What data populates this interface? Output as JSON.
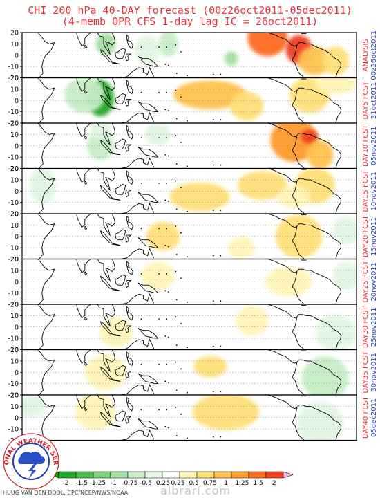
{
  "header": {
    "title_line1": "CHI 200 hPa 40-DAY forecast (00z26oct2011-05dec2011)",
    "title_line2": "(4-memb OPR CFS 1-day lag IC = 26oct2011)"
  },
  "credit": "HUUG VAN DEN DOOL, CPC/NCEP/NWS/NOAA",
  "watermark": "albrari.com",
  "logo_text": "NATIONAL WEATHER SERVICE",
  "colors": {
    "title": "#e8303a",
    "label_red": "#e8303a",
    "label_blue": "#2b3fc8",
    "coast": "#000000"
  },
  "chart_data": {
    "type": "heatmap",
    "yticks": [
      20,
      10,
      0,
      -10,
      -20
    ],
    "panels": [
      {
        "label1": "ANALYSIS",
        "label2": "00z26oct2011"
      },
      {
        "label1": "DAY5 FCST",
        "label2": "31oct2011"
      },
      {
        "label1": "DAY10 FCST",
        "label2": "05nov2011"
      },
      {
        "label1": "DAY15 FCST",
        "label2": "10nov2011"
      },
      {
        "label1": "DAY20 FCST",
        "label2": "15nov2011"
      },
      {
        "label1": "DAY25 FCST",
        "label2": "20nov2011"
      },
      {
        "label1": "DAY30 FCST",
        "label2": "25nov2011"
      },
      {
        "label1": "DAY35 FCST",
        "label2": "30nov2011"
      },
      {
        "label1": "DAY40 FCST",
        "label2": "05dec2011"
      }
    ],
    "colorbar": {
      "ticks": [
        "-2",
        "-1.5",
        "-1.25",
        "-1",
        "-0.75",
        "-0.5",
        "-0.25",
        "0.25",
        "0.5",
        "0.75",
        "1",
        "1.25",
        "1.5",
        "2"
      ],
      "colors": [
        "#22a828",
        "#4cbc4c",
        "#7ccf7c",
        "#a4dfa4",
        "#c6edc6",
        "#e2f6e2",
        "#ffffff",
        "#fff4b8",
        "#ffe07a",
        "#ffc250",
        "#ff9a2e",
        "#ff6a22",
        "#f04020",
        "#f4b4e6"
      ]
    },
    "anomalies": [
      [
        {
          "lon": 100,
          "lat": 10,
          "value": -1.2,
          "w": 6,
          "h": 6
        },
        {
          "lon": 160,
          "lat": 10,
          "value": -0.9,
          "w": 6,
          "h": 7
        },
        {
          "lon": 140,
          "lat": 5,
          "value": -0.6,
          "w": 8,
          "h": 8
        },
        {
          "lon": 220,
          "lat": -3,
          "value": -1.0,
          "w": 4,
          "h": 4
        },
        {
          "lon": 255,
          "lat": 15,
          "value": 1.3,
          "w": 12,
          "h": 10
        },
        {
          "lon": 285,
          "lat": 5,
          "value": 1.6,
          "w": 8,
          "h": 8
        },
        {
          "lon": 300,
          "lat": -5,
          "value": 0.9,
          "w": 10,
          "h": 8
        },
        {
          "lon": 320,
          "lat": -5,
          "value": 0.6,
          "w": 8,
          "h": 8
        }
      ],
      [
        {
          "lon": 95,
          "lat": 2,
          "value": -2.2,
          "w": 8,
          "h": 10
        },
        {
          "lon": 80,
          "lat": 5,
          "value": -0.8,
          "w": 12,
          "h": 10
        },
        {
          "lon": 200,
          "lat": 5,
          "value": 0.9,
          "w": 22,
          "h": 8
        },
        {
          "lon": 235,
          "lat": -5,
          "value": 0.6,
          "w": 10,
          "h": 8
        },
        {
          "lon": 295,
          "lat": 5,
          "value": 0.5,
          "w": 12,
          "h": 10
        },
        {
          "lon": 320,
          "lat": 15,
          "value": 0.3,
          "w": 12,
          "h": 6
        }
      ],
      [
        {
          "lon": 95,
          "lat": 0,
          "value": -0.9,
          "w": 8,
          "h": 8
        },
        {
          "lon": 95,
          "lat": 15,
          "value": -0.6,
          "w": 6,
          "h": 6
        },
        {
          "lon": 150,
          "lat": 10,
          "value": -0.5,
          "w": 8,
          "h": 6
        },
        {
          "lon": 280,
          "lat": 5,
          "value": 1.0,
          "w": 14,
          "h": 12
        },
        {
          "lon": 295,
          "lat": 8,
          "value": 1.6,
          "w": 5,
          "h": 4
        },
        {
          "lon": 305,
          "lat": -8,
          "value": 0.8,
          "w": 8,
          "h": 8
        }
      ],
      [
        {
          "lon": 40,
          "lat": 5,
          "value": -0.5,
          "w": 8,
          "h": 10
        },
        {
          "lon": 190,
          "lat": -5,
          "value": 0.5,
          "w": 18,
          "h": 8
        },
        {
          "lon": 250,
          "lat": 5,
          "value": 0.5,
          "w": 15,
          "h": 8
        },
        {
          "lon": 300,
          "lat": 5,
          "value": 0.6,
          "w": 12,
          "h": 10
        },
        {
          "lon": 280,
          "lat": -5,
          "value": 0.4,
          "w": 10,
          "h": 6
        }
      ],
      [
        {
          "lon": 155,
          "lat": 0,
          "value": 0.5,
          "w": 10,
          "h": 8
        },
        {
          "lon": 230,
          "lat": -10,
          "value": 0.4,
          "w": 8,
          "h": 6
        },
        {
          "lon": 285,
          "lat": 0,
          "value": 0.6,
          "w": 14,
          "h": 12
        },
        {
          "lon": 330,
          "lat": 5,
          "value": -0.3,
          "w": 8,
          "h": 8
        }
      ],
      [
        {
          "lon": 150,
          "lat": 5,
          "value": 0.4,
          "w": 10,
          "h": 8
        },
        {
          "lon": 275,
          "lat": 0,
          "value": 0.4,
          "w": 14,
          "h": 8
        },
        {
          "lon": 330,
          "lat": 5,
          "value": -0.3,
          "w": 8,
          "h": 8
        }
      ],
      [
        {
          "lon": 110,
          "lat": -5,
          "value": 0.4,
          "w": 10,
          "h": 8
        },
        {
          "lon": 240,
          "lat": 5,
          "value": 0.4,
          "w": 10,
          "h": 8
        },
        {
          "lon": 320,
          "lat": -5,
          "value": -0.7,
          "w": 12,
          "h": 10
        }
      ],
      [
        {
          "lon": 100,
          "lat": 0,
          "value": 0.4,
          "w": 12,
          "h": 10
        },
        {
          "lon": 200,
          "lat": 5,
          "value": 0.5,
          "w": 10,
          "h": 6
        },
        {
          "lon": 310,
          "lat": -5,
          "value": -0.8,
          "w": 14,
          "h": 12
        }
      ],
      [
        {
          "lon": 30,
          "lat": 10,
          "value": -0.5,
          "w": 8,
          "h": 6
        },
        {
          "lon": 90,
          "lat": 5,
          "value": 0.4,
          "w": 12,
          "h": 10
        },
        {
          "lon": 215,
          "lat": 5,
          "value": 0.6,
          "w": 20,
          "h": 10
        },
        {
          "lon": 305,
          "lat": -5,
          "value": -0.7,
          "w": 14,
          "h": 12
        }
      ]
    ]
  }
}
